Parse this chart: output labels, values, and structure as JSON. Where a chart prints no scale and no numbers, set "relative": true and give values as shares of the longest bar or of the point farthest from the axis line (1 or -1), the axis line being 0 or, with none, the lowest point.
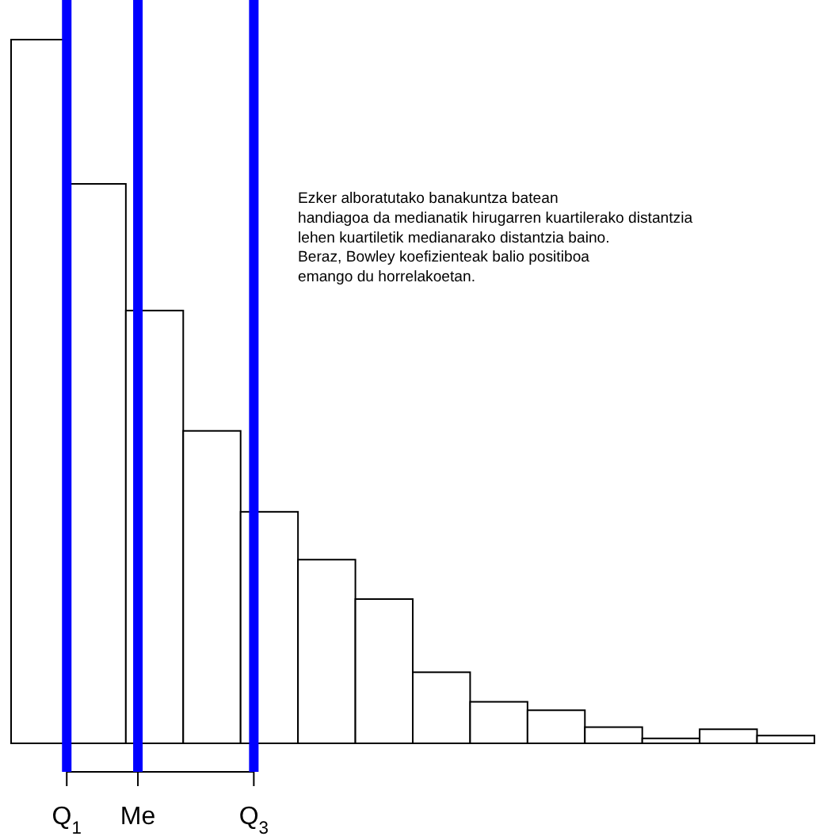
{
  "chart_data": {
    "type": "bar",
    "relative": true,
    "categories": [
      null,
      null,
      null,
      null,
      null,
      null,
      null,
      null,
      null,
      null,
      null,
      null,
      null,
      null
    ],
    "values": [
      1,
      0.795,
      0.615,
      0.444,
      0.329,
      0.261,
      0.205,
      0.101,
      0.059,
      0.047,
      0.023,
      0.007,
      0.02,
      0.011
    ],
    "color": "#ffffff",
    "annotations": [
      "Q$_{1}$",
      "Me",
      "Q$_{3}$",
      "Ezker alboratutako banakuntza batean\nhandiagoa da medianatik hirugarren kuartilerako distantzia\nlehen kuartiletik medianarako distantzia baino.\nBeraz, Bowley koefizienteak balio positiboa\nemango du horrelakoetan."
    ]
  }
}
